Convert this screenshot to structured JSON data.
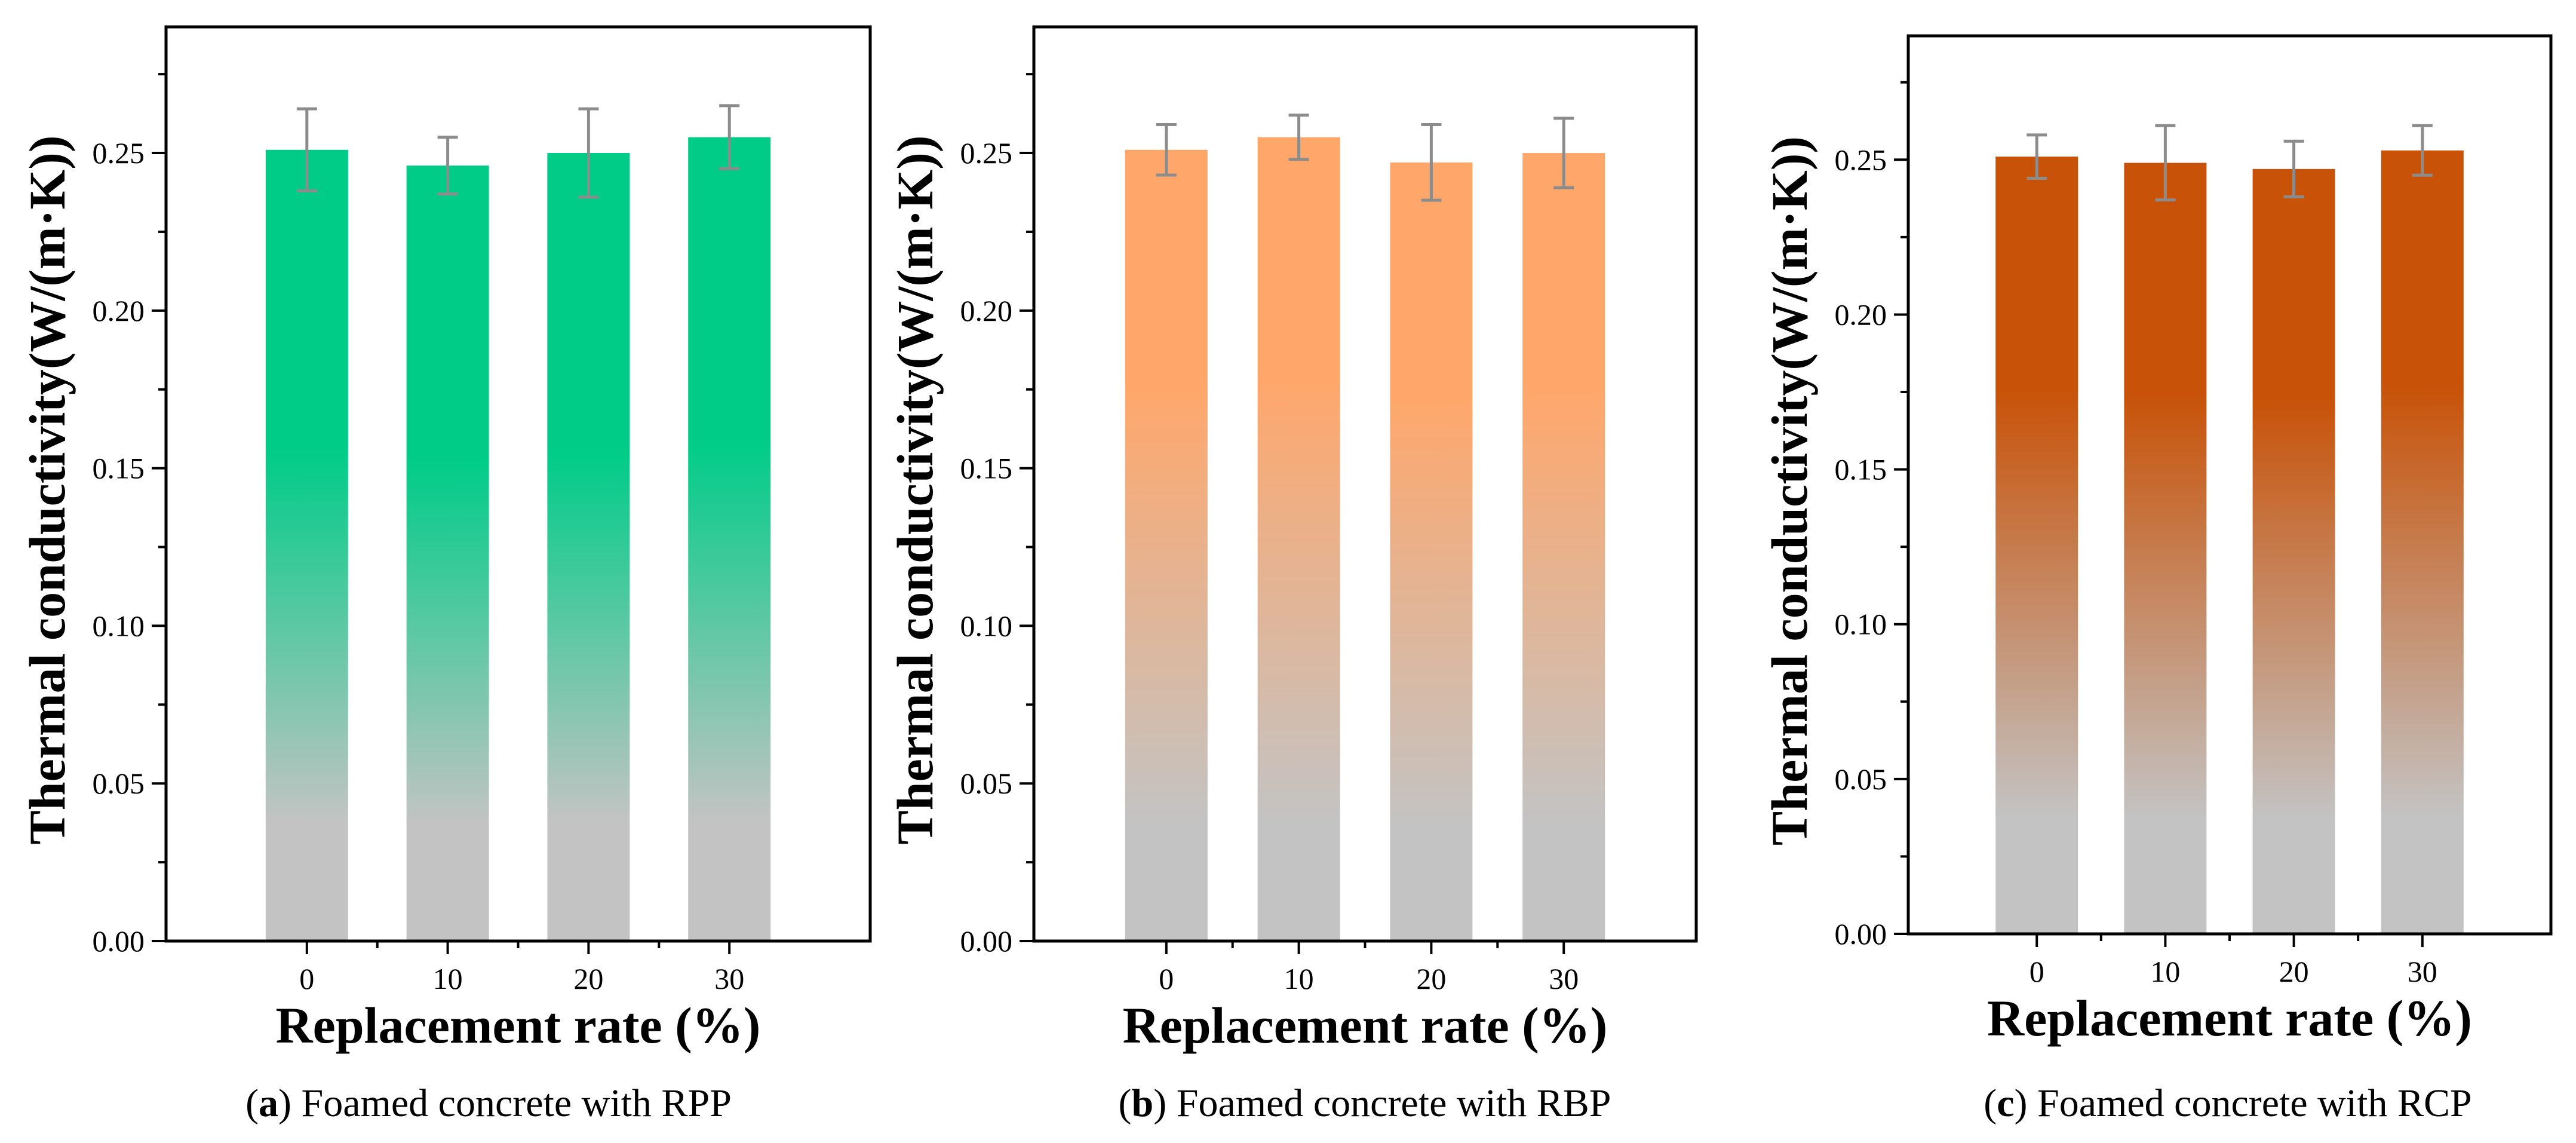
{
  "chart_data": [
    {
      "type": "bar",
      "panel": "a",
      "caption_letter": "a",
      "caption_text": "Foamed concrete with RPP",
      "categories": [
        "0",
        "10",
        "20",
        "30"
      ],
      "values": [
        0.251,
        0.246,
        0.25,
        0.255
      ],
      "errors": [
        0.013,
        0.009,
        0.014,
        0.01
      ],
      "xlabel": "Replacement rate (%)",
      "ylabel": "Thermal conductivity(W/(m·K))",
      "ylim": [
        0,
        0.29
      ],
      "yticks": [
        "0.00",
        "0.05",
        "0.10",
        "0.15",
        "0.20",
        "0.25"
      ],
      "gradient": {
        "top": "#00cc88",
        "bottom": "#c3c3c3"
      }
    },
    {
      "type": "bar",
      "panel": "b",
      "caption_letter": "b",
      "caption_text": "Foamed concrete with RBP",
      "categories": [
        "0",
        "10",
        "20",
        "30"
      ],
      "values": [
        0.251,
        0.255,
        0.247,
        0.25
      ],
      "errors": [
        0.008,
        0.007,
        0.012,
        0.011
      ],
      "xlabel": "Replacement rate (%)",
      "ylabel": "Thermal conductivity(W/(m·K))",
      "ylim": [
        0,
        0.29
      ],
      "yticks": [
        "0.00",
        "0.05",
        "0.10",
        "0.15",
        "0.20",
        "0.25"
      ],
      "gradient": {
        "top": "#ffa76b",
        "bottom": "#c3c3c3"
      }
    },
    {
      "type": "bar",
      "panel": "c",
      "caption_letter": "c",
      "caption_text": "Foamed concrete with RCP",
      "categories": [
        "0",
        "10",
        "20",
        "30"
      ],
      "values": [
        0.251,
        0.249,
        0.247,
        0.253
      ],
      "errors": [
        0.007,
        0.012,
        0.009,
        0.008
      ],
      "xlabel": "Replacement rate (%)",
      "ylabel": "Thermal conductivity(W/(m·K))",
      "ylim": [
        0,
        0.29
      ],
      "yticks": [
        "0.00",
        "0.05",
        "0.10",
        "0.15",
        "0.20",
        "0.25"
      ],
      "gradient": {
        "top": "#c85208",
        "bottom": "#c3c3c3"
      }
    }
  ]
}
